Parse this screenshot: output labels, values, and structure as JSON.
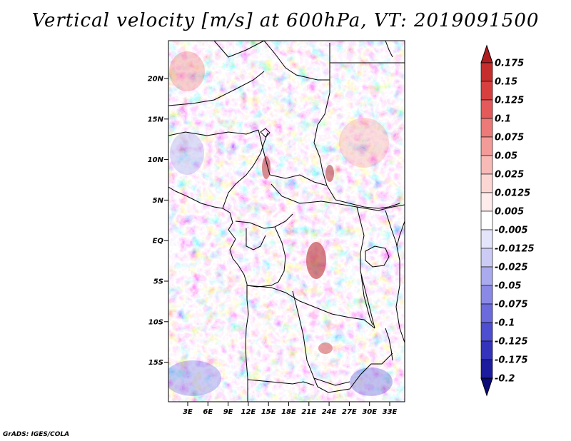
{
  "title": "Vertical velocity [m/s] at 600hPa, VT: 2019091500",
  "credit": "GrADS: IGES/COLA",
  "map": {
    "variable": "Vertical velocity",
    "units": "m/s",
    "level": "600hPa",
    "valid_time": "2019091500",
    "lat_labels": [
      "20N",
      "15N",
      "10N",
      "5N",
      "EQ",
      "5S",
      "10S",
      "15S"
    ],
    "lon_labels": [
      "3E",
      "6E",
      "9E",
      "12E",
      "15E",
      "18E",
      "21E",
      "24E",
      "27E",
      "30E",
      "33E"
    ]
  },
  "colorbar": {
    "labels": [
      "0.175",
      "0.15",
      "0.125",
      "0.1",
      "0.075",
      "0.05",
      "0.025",
      "0.0125",
      "0.005",
      "-0.005",
      "-0.0125",
      "-0.025",
      "-0.05",
      "-0.075",
      "-0.1",
      "-0.125",
      "-0.175",
      "-0.2"
    ],
    "colors": [
      "#b01c20",
      "#c62d2d",
      "#d84040",
      "#e45a5a",
      "#ec7a78",
      "#f39b98",
      "#f8bab6",
      "#fcd6d3",
      "#fdeceb",
      "#ffffff",
      "#e4e4fb",
      "#cbcbf6",
      "#aaaaef",
      "#8a8ae6",
      "#6b6bdc",
      "#4e4ed0",
      "#3333bb",
      "#1c1c9e",
      "#0a0a78"
    ]
  }
}
